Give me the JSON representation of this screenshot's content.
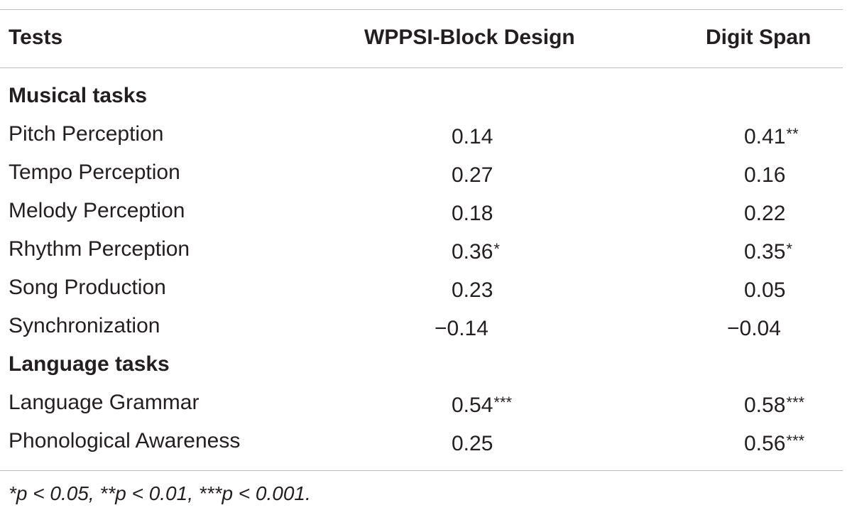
{
  "table": {
    "header": {
      "tests": "Tests",
      "wppsi": "WPPSI-Block Design",
      "digit": "Digit Span"
    },
    "sections": [
      {
        "title": "Musical tasks",
        "rows": [
          {
            "test": "Pitch Perception",
            "wppsi": "0.14",
            "wppsi_sig": "",
            "digit": "0.41",
            "digit_sig": "**"
          },
          {
            "test": "Tempo Perception",
            "wppsi": "0.27",
            "wppsi_sig": "",
            "digit": "0.16",
            "digit_sig": ""
          },
          {
            "test": "Melody Perception",
            "wppsi": "0.18",
            "wppsi_sig": "",
            "digit": "0.22",
            "digit_sig": ""
          },
          {
            "test": "Rhythm Perception",
            "wppsi": "0.36",
            "wppsi_sig": "*",
            "digit": "0.35",
            "digit_sig": "*"
          },
          {
            "test": "Song Production",
            "wppsi": "0.23",
            "wppsi_sig": "",
            "digit": "0.05",
            "digit_sig": ""
          },
          {
            "test": "Synchronization",
            "wppsi": "−0.14",
            "wppsi_sig": "",
            "digit": "−0.04",
            "digit_sig": ""
          }
        ]
      },
      {
        "title": "Language tasks",
        "rows": [
          {
            "test": "Language Grammar",
            "wppsi": "0.54",
            "wppsi_sig": "***",
            "digit": "0.58",
            "digit_sig": "***"
          },
          {
            "test": "Phonological Awareness",
            "wppsi": "0.25",
            "wppsi_sig": "",
            "digit": "0.56",
            "digit_sig": "***"
          }
        ]
      }
    ],
    "footnote": "*p < 0.05, **p < 0.01, ***p < 0.001."
  }
}
